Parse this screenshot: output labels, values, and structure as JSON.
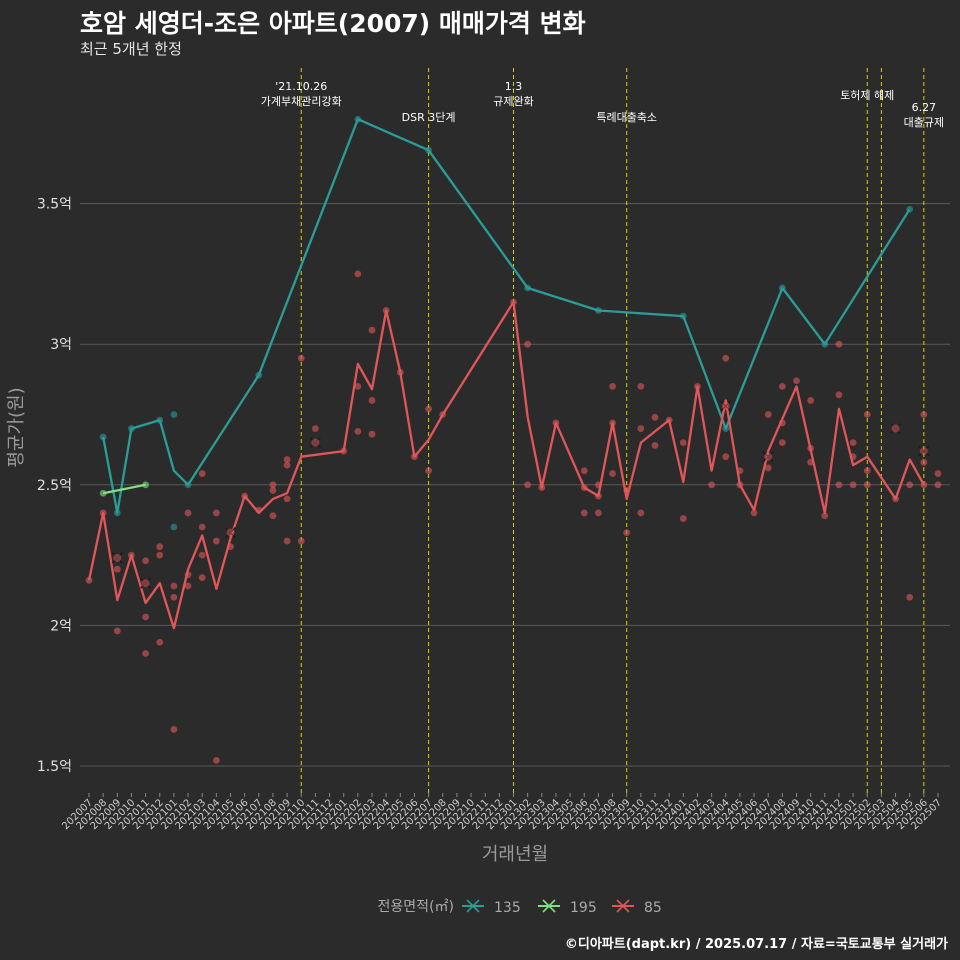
{
  "title": "호암 세영더-조은 아파트(2007) 매매가격 변화",
  "subtitle": "최근 5개년 한정",
  "caption": "©디아파트(dapt.kr) / 2025.07.17 / 자료=국토교통부 실거래가",
  "chart_data": {
    "type": "line",
    "xlabel": "거래년월",
    "ylabel": "평균가(원)",
    "ylim": [
      1.4,
      3.9
    ],
    "yticks": [
      {
        "v": 1.5,
        "label": "1.5억"
      },
      {
        "v": 2,
        "label": "2억"
      },
      {
        "v": 2.5,
        "label": "2.5억"
      },
      {
        "v": 3,
        "label": "3억"
      },
      {
        "v": 3.5,
        "label": "3.5억"
      }
    ],
    "x_categories": [
      "202007",
      "202008",
      "202009",
      "202010",
      "202011",
      "202012",
      "202101",
      "202102",
      "202103",
      "202104",
      "202105",
      "202106",
      "202107",
      "202108",
      "202109",
      "202110",
      "202111",
      "202112",
      "202201",
      "202202",
      "202203",
      "202204",
      "202205",
      "202206",
      "202207",
      "202208",
      "202209",
      "202210",
      "202211",
      "202212",
      "202301",
      "202302",
      "202303",
      "202304",
      "202305",
      "202306",
      "202307",
      "202308",
      "202309",
      "202310",
      "202311",
      "202312",
      "202401",
      "202402",
      "202403",
      "202404",
      "202405",
      "202406",
      "202407",
      "202408",
      "202409",
      "202410",
      "202411",
      "202412",
      "202501",
      "202502",
      "202503",
      "202504",
      "202505",
      "202506",
      "202507"
    ],
    "grid": true,
    "legend_title": "전용면적(㎡)",
    "legend_position": "bottom",
    "series": [
      {
        "name": "135",
        "color": "#2a9d99",
        "points": [
          [
            "202008",
            2.67
          ],
          [
            "202009",
            2.4
          ],
          [
            "202010",
            2.7
          ],
          [
            "202012",
            2.73
          ],
          [
            "202101",
            2.55
          ],
          [
            "202102",
            2.5
          ],
          [
            "202107",
            2.89
          ],
          [
            "202202",
            3.8
          ],
          [
            "202207",
            3.69
          ],
          [
            "202302",
            3.2
          ],
          [
            "202307",
            3.12
          ],
          [
            "202401",
            3.1
          ],
          [
            "202404",
            2.7
          ],
          [
            "202408",
            3.2
          ],
          [
            "202411",
            3.0
          ],
          [
            "202505",
            3.48
          ]
        ],
        "dots": [
          [
            "202008",
            2.67
          ],
          [
            "202009",
            2.4
          ],
          [
            "202010",
            2.7
          ],
          [
            "202012",
            2.73
          ],
          [
            "202101",
            2.75
          ],
          [
            "202101",
            2.35
          ],
          [
            "202102",
            2.5
          ],
          [
            "202107",
            2.89
          ],
          [
            "202202",
            3.8
          ],
          [
            "202207",
            3.69
          ],
          [
            "202302",
            3.2
          ],
          [
            "202307",
            3.12
          ],
          [
            "202401",
            3.1
          ],
          [
            "202404",
            2.7
          ],
          [
            "202408",
            3.2
          ],
          [
            "202411",
            3.0
          ],
          [
            "202505",
            3.48
          ]
        ],
        "crosses": []
      },
      {
        "name": "195",
        "color": "#7ee07e",
        "points": [
          [
            "202008",
            2.47
          ],
          [
            "202011",
            2.5
          ]
        ],
        "dots": [
          [
            "202008",
            2.47
          ],
          [
            "202011",
            2.5
          ]
        ],
        "crosses": []
      },
      {
        "name": "85",
        "color": "#e15759",
        "points": [
          [
            "202007",
            2.16
          ],
          [
            "202008",
            2.4
          ],
          [
            "202009",
            2.09
          ],
          [
            "202010",
            2.25
          ],
          [
            "202011",
            2.08
          ],
          [
            "202012",
            2.15
          ],
          [
            "202101",
            1.99
          ],
          [
            "202102",
            2.2
          ],
          [
            "202103",
            2.32
          ],
          [
            "202104",
            2.13
          ],
          [
            "202105",
            2.31
          ],
          [
            "202106",
            2.46
          ],
          [
            "202107",
            2.4
          ],
          [
            "202108",
            2.45
          ],
          [
            "202109",
            2.47
          ],
          [
            "202110",
            2.6
          ],
          [
            "202201",
            2.62
          ],
          [
            "202202",
            2.93
          ],
          [
            "202203",
            2.84
          ],
          [
            "202204",
            3.12
          ],
          [
            "202205",
            2.9
          ],
          [
            "202206",
            2.6
          ],
          [
            "202207",
            2.66
          ],
          [
            "202208",
            2.75
          ],
          [
            "202301",
            3.15
          ],
          [
            "202302",
            2.74
          ],
          [
            "202303",
            2.49
          ],
          [
            "202304",
            2.72
          ],
          [
            "202306",
            2.49
          ],
          [
            "202307",
            2.46
          ],
          [
            "202308",
            2.72
          ],
          [
            "202309",
            2.45
          ],
          [
            "202310",
            2.65
          ],
          [
            "202312",
            2.73
          ],
          [
            "202401",
            2.51
          ],
          [
            "202402",
            2.85
          ],
          [
            "202403",
            2.55
          ],
          [
            "202404",
            2.8
          ],
          [
            "202405",
            2.5
          ],
          [
            "202406",
            2.41
          ],
          [
            "202407",
            2.62
          ],
          [
            "202409",
            2.85
          ],
          [
            "202411",
            2.4
          ],
          [
            "202412",
            2.77
          ],
          [
            "202501",
            2.57
          ],
          [
            "202502",
            2.6
          ],
          [
            "202504",
            2.45
          ],
          [
            "202505",
            2.59
          ],
          [
            "202506",
            2.5
          ]
        ],
        "dots": [
          [
            "202007",
            2.16
          ],
          [
            "202008",
            2.4
          ],
          [
            "202009",
            2.2
          ],
          [
            "202009",
            1.98
          ],
          [
            "202010",
            2.25
          ],
          [
            "202011",
            2.23
          ],
          [
            "202011",
            2.03
          ],
          [
            "202011",
            1.9
          ],
          [
            "202012",
            2.28
          ],
          [
            "202012",
            2.25
          ],
          [
            "202012",
            1.94
          ],
          [
            "202101",
            2.14
          ],
          [
            "202101",
            2.1
          ],
          [
            "202101",
            1.63
          ],
          [
            "202102",
            2.4
          ],
          [
            "202102",
            2.18
          ],
          [
            "202102",
            2.14
          ],
          [
            "202103",
            2.54
          ],
          [
            "202103",
            2.35
          ],
          [
            "202103",
            2.25
          ],
          [
            "202103",
            2.17
          ],
          [
            "202104",
            2.4
          ],
          [
            "202104",
            2.3
          ],
          [
            "202104",
            1.52
          ],
          [
            "202105",
            2.28
          ],
          [
            "202106",
            2.46
          ],
          [
            "202107",
            2.41
          ],
          [
            "202108",
            2.5
          ],
          [
            "202108",
            2.48
          ],
          [
            "202108",
            2.39
          ],
          [
            "202109",
            2.59
          ],
          [
            "202109",
            2.57
          ],
          [
            "202109",
            2.45
          ],
          [
            "202109",
            2.3
          ],
          [
            "202110",
            2.95
          ],
          [
            "202110",
            2.3
          ],
          [
            "202111",
            2.7
          ],
          [
            "202201",
            2.62
          ],
          [
            "202202",
            3.25
          ],
          [
            "202202",
            2.85
          ],
          [
            "202202",
            2.69
          ],
          [
            "202203",
            3.05
          ],
          [
            "202203",
            2.8
          ],
          [
            "202203",
            2.68
          ],
          [
            "202204",
            3.12
          ],
          [
            "202205",
            2.9
          ],
          [
            "202206",
            2.6
          ],
          [
            "202207",
            2.77
          ],
          [
            "202207",
            2.55
          ],
          [
            "202208",
            2.75
          ],
          [
            "202301",
            3.15
          ],
          [
            "202302",
            3.0
          ],
          [
            "202302",
            2.5
          ],
          [
            "202303",
            2.49
          ],
          [
            "202304",
            2.72
          ],
          [
            "202306",
            2.55
          ],
          [
            "202306",
            2.49
          ],
          [
            "202306",
            2.4
          ],
          [
            "202307",
            2.5
          ],
          [
            "202307",
            2.46
          ],
          [
            "202307",
            2.4
          ],
          [
            "202308",
            2.85
          ],
          [
            "202308",
            2.72
          ],
          [
            "202308",
            2.54
          ],
          [
            "202309",
            2.48
          ],
          [
            "202309",
            2.33
          ],
          [
            "202310",
            2.85
          ],
          [
            "202310",
            2.7
          ],
          [
            "202310",
            2.4
          ],
          [
            "202311",
            2.74
          ],
          [
            "202311",
            2.64
          ],
          [
            "202312",
            2.73
          ],
          [
            "202401",
            2.65
          ],
          [
            "202401",
            2.38
          ],
          [
            "202402",
            2.85
          ],
          [
            "202403",
            2.5
          ],
          [
            "202404",
            2.95
          ],
          [
            "202404",
            2.6
          ],
          [
            "202405",
            2.55
          ],
          [
            "202405",
            2.5
          ],
          [
            "202406",
            2.4
          ],
          [
            "202407",
            2.75
          ],
          [
            "202407",
            2.56
          ],
          [
            "202408",
            2.85
          ],
          [
            "202408",
            2.72
          ],
          [
            "202408",
            2.65
          ],
          [
            "202409",
            2.87
          ],
          [
            "202410",
            2.8
          ],
          [
            "202410",
            2.63
          ],
          [
            "202410",
            2.58
          ],
          [
            "202411",
            2.39
          ],
          [
            "202412",
            3.0
          ],
          [
            "202412",
            2.82
          ],
          [
            "202412",
            2.5
          ],
          [
            "202501",
            2.65
          ],
          [
            "202501",
            2.6
          ],
          [
            "202501",
            2.5
          ],
          [
            "202502",
            2.75
          ],
          [
            "202502",
            2.55
          ],
          [
            "202502",
            2.5
          ],
          [
            "202504",
            2.45
          ],
          [
            "202505",
            2.5
          ],
          [
            "202505",
            2.1
          ],
          [
            "202506",
            2.75
          ],
          [
            "202506",
            2.58
          ],
          [
            "202506",
            2.5
          ],
          [
            "202507",
            2.54
          ],
          [
            "202507",
            2.5
          ]
        ],
        "crosses": [
          [
            "202009",
            2.24
          ],
          [
            "202011",
            2.15
          ],
          [
            "202105",
            2.33
          ],
          [
            "202111",
            2.65
          ],
          [
            "202404",
            2.78
          ],
          [
            "202407",
            2.6
          ],
          [
            "202504",
            2.7
          ],
          [
            "202506",
            2.62
          ]
        ]
      }
    ],
    "annotations": [
      {
        "x": "202110",
        "lines": [
          "'21.10.26",
          "가계부채관리강화"
        ],
        "y_top": 90
      },
      {
        "x": "202207",
        "lines": [
          "DSR 3단계"
        ],
        "y_top": 121
      },
      {
        "x": "202301",
        "lines": [
          "1.3",
          "규제완화"
        ],
        "y_top": 90
      },
      {
        "x": "202309",
        "lines": [
          "특례대출축소"
        ],
        "y_top": 121
      },
      {
        "x": "202502",
        "lines": [
          "토허제 해제"
        ],
        "y_top": 99
      },
      {
        "x": "202503",
        "lines": [],
        "y_top": 0
      },
      {
        "x": "202506",
        "lines": [
          "6.27",
          "대출규제"
        ],
        "y_top": 111
      }
    ],
    "annotation_color": "#d4d400"
  }
}
